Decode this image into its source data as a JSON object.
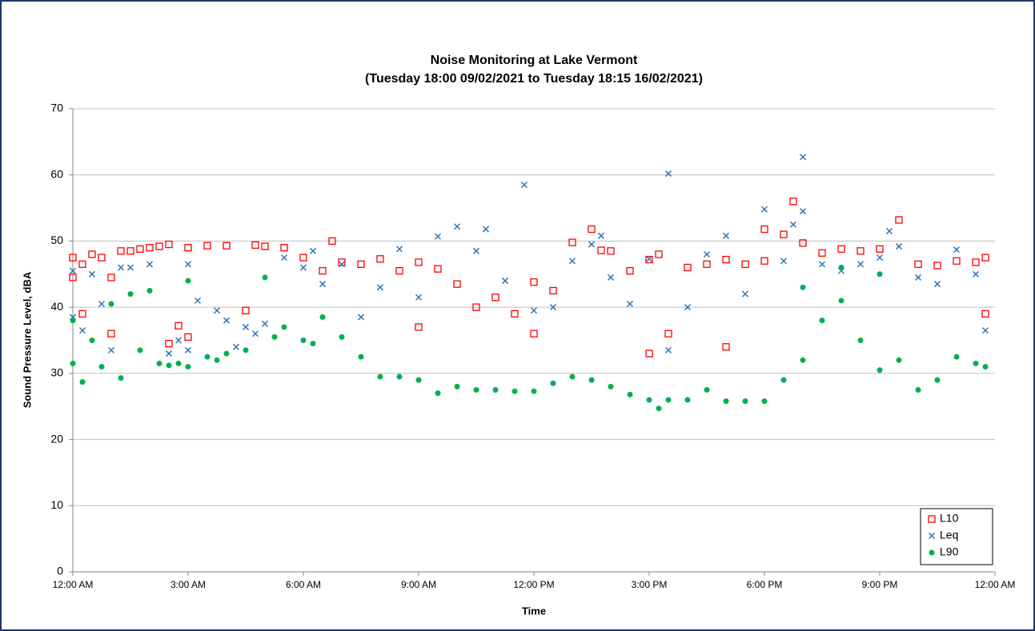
{
  "chart_data": {
    "type": "scatter",
    "title": "Noise Monitoring at Lake Vermont",
    "subtitle": "(Tuesday 18:00 09/02/2021 to Tuesday 18:15 16/02/2021)",
    "x_label": "Time",
    "y_label": "Sound Pressure Level, dBA",
    "xlim": [
      0,
      24
    ],
    "xticks": [
      {
        "value": 0,
        "label": "12:00 AM"
      },
      {
        "value": 3,
        "label": "3:00 AM"
      },
      {
        "value": 6,
        "label": "6:00 AM"
      },
      {
        "value": 9,
        "label": "9:00 AM"
      },
      {
        "value": 12,
        "label": "12:00 PM"
      },
      {
        "value": 15,
        "label": "3:00 PM"
      },
      {
        "value": 18,
        "label": "6:00 PM"
      },
      {
        "value": 21,
        "label": "9:00 PM"
      },
      {
        "value": 24,
        "label": "12:00 AM"
      }
    ],
    "ylim": [
      0,
      70
    ],
    "yticks": [
      0,
      10,
      20,
      30,
      40,
      50,
      60,
      70
    ],
    "grid": true,
    "legend": "lower-right",
    "series": [
      {
        "name": "L10",
        "color": "#ff0000",
        "marker": "square",
        "x": [
          0,
          0,
          0.25,
          0.25,
          0.5,
          0.75,
          1,
          1,
          1.25,
          1.5,
          1.75,
          2,
          2.25,
          2.5,
          2.5,
          2.75,
          3,
          3,
          3.5,
          4,
          4.5,
          4.75,
          5,
          5.5,
          6,
          6.5,
          6.75,
          7,
          7.5,
          8,
          8.5,
          9,
          9.5,
          10,
          10.5,
          11,
          11.5,
          12,
          12.5,
          13,
          13.5,
          13.75,
          14,
          14.5,
          15,
          15.25,
          15.5,
          16,
          16.5,
          17,
          17.5,
          18,
          18,
          18.5,
          18.75,
          19,
          19.5,
          20,
          20.5,
          21,
          21.5,
          22,
          22.5,
          23,
          23.5,
          23.75,
          23.75,
          9,
          12,
          15,
          17
        ],
        "values": [
          47.5,
          44.5,
          46.5,
          39.0,
          48.0,
          47.5,
          44.5,
          36.0,
          48.5,
          48.5,
          48.8,
          49.0,
          49.2,
          34.5,
          49.5,
          37.2,
          35.5,
          49.0,
          49.3,
          49.3,
          39.5,
          49.4,
          49.2,
          49.0,
          47.5,
          45.5,
          50.0,
          46.8,
          46.5,
          47.3,
          45.5,
          46.8,
          45.8,
          43.5,
          40.0,
          41.5,
          39.0,
          43.8,
          42.5,
          49.8,
          51.8,
          48.6,
          48.5,
          45.5,
          47.2,
          48.0,
          36.0,
          46.0,
          46.5,
          47.2,
          46.5,
          47.0,
          51.8,
          51.0,
          56.0,
          49.7,
          48.2,
          48.8,
          48.5,
          48.8,
          53.2,
          46.5,
          46.3,
          47.0,
          46.8,
          47.5,
          39.0,
          37,
          36,
          33,
          34
        ]
      },
      {
        "name": "Leq",
        "color": "#2e75b6",
        "marker": "cross",
        "x": [
          0,
          0,
          0.25,
          0.5,
          0.75,
          1,
          1.25,
          1.5,
          2,
          2.5,
          2.75,
          3,
          3,
          3.25,
          3.75,
          4,
          4.25,
          4.5,
          4.75,
          5,
          5.5,
          6,
          6.25,
          6.5,
          7,
          7.5,
          8,
          8.5,
          9,
          9.5,
          10,
          10.5,
          10.75,
          11.25,
          11.75,
          12,
          12.5,
          13,
          13.5,
          13.75,
          14,
          14.5,
          15,
          15.5,
          15.5,
          16,
          16.5,
          17,
          17.5,
          18,
          18.5,
          18.75,
          19,
          19,
          19.5,
          20,
          20.5,
          21,
          21.25,
          21.5,
          22,
          22.5,
          23,
          23.5,
          23.75
        ],
        "values": [
          45.5,
          38.5,
          36.5,
          45.0,
          40.5,
          33.5,
          46.0,
          46.0,
          46.5,
          33.0,
          35.0,
          33.5,
          46.5,
          41.0,
          39.5,
          38.0,
          34.0,
          37.0,
          36.0,
          37.5,
          47.5,
          46.0,
          48.5,
          43.5,
          46.5,
          38.5,
          43.0,
          48.8,
          41.5,
          50.7,
          52.2,
          48.5,
          51.8,
          44.0,
          58.5,
          39.5,
          40.0,
          47.0,
          49.5,
          50.8,
          44.5,
          40.5,
          47.3,
          60.2,
          33.5,
          40.0,
          48.0,
          50.8,
          42.0,
          54.8,
          47.0,
          52.5,
          62.7,
          54.5,
          46.5,
          45.5,
          46.5,
          47.5,
          51.5,
          49.2,
          44.5,
          43.5,
          48.7,
          45.0,
          36.5
        ]
      },
      {
        "name": "L90",
        "color": "#00b050",
        "marker": "circle",
        "x": [
          0,
          0,
          0.25,
          0.5,
          0.75,
          1,
          1.25,
          1.5,
          1.75,
          2,
          2.25,
          2.5,
          2.75,
          3,
          3,
          3.5,
          3.75,
          4,
          4.5,
          5,
          5.25,
          5.5,
          6,
          6.25,
          6.5,
          7,
          7.5,
          8,
          8.5,
          9,
          9.5,
          10,
          10.5,
          11,
          11.5,
          12,
          12.5,
          13,
          13.5,
          14,
          14.5,
          15,
          15.25,
          15.5,
          16,
          16.5,
          17,
          17.5,
          18,
          18.5,
          19,
          19.5,
          20,
          20.5,
          21,
          21.5,
          22,
          22.5,
          23,
          23.5,
          23.75,
          19,
          20,
          21
        ],
        "values": [
          31.5,
          38.0,
          28.7,
          35.0,
          31.0,
          40.5,
          29.3,
          42.0,
          33.5,
          42.5,
          31.5,
          31.2,
          31.5,
          31.0,
          44.0,
          32.5,
          32.0,
          33.0,
          33.5,
          44.5,
          35.5,
          37.0,
          35.0,
          34.5,
          38.5,
          35.5,
          32.5,
          29.5,
          29.5,
          29.0,
          27.0,
          28.0,
          27.5,
          27.5,
          27.3,
          27.3,
          28.5,
          29.5,
          29.0,
          28.0,
          26.8,
          26.0,
          24.7,
          26.0,
          26.0,
          27.5,
          25.8,
          25.8,
          25.8,
          29.0,
          32.0,
          38.0,
          41.0,
          35.0,
          30.5,
          32.0,
          27.5,
          29.0,
          32.5,
          31.5,
          31.0,
          43,
          46,
          45
        ]
      }
    ]
  }
}
